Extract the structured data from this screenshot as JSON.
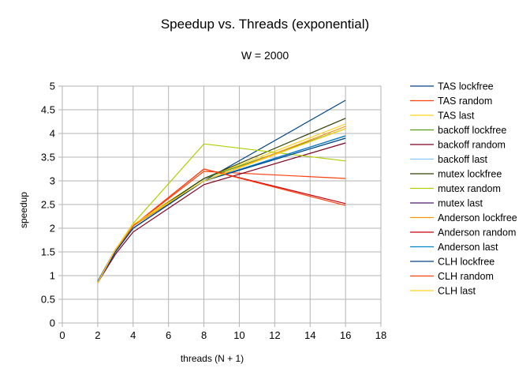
{
  "chart_data": {
    "type": "line",
    "title": "Speedup vs. Threads (exponential)",
    "subtitle": "W = 2000",
    "xlabel": "threads (N + 1)",
    "ylabel": "speedup",
    "xlim": [
      0,
      18
    ],
    "ylim": [
      0,
      5
    ],
    "xticks": [
      0,
      2,
      4,
      6,
      8,
      10,
      12,
      14,
      16,
      18
    ],
    "yticks": [
      0,
      0.5,
      1,
      1.5,
      2,
      2.5,
      3,
      3.5,
      4,
      4.5,
      5
    ],
    "ytick_labels": [
      "0",
      "0.5",
      "1",
      "1.5",
      "2",
      "2.5",
      "3",
      "3.5",
      "4",
      "4.5",
      "5"
    ],
    "grid": true,
    "legend_position": "right",
    "x": [
      2,
      3,
      4,
      8,
      16
    ],
    "series": [
      {
        "name": "TAS lockfree",
        "color": "#004586",
        "values": [
          0.88,
          1.55,
          2.05,
          3.0,
          4.7
        ]
      },
      {
        "name": "TAS random",
        "color": "#ff420e",
        "values": [
          0.85,
          1.55,
          2.05,
          3.2,
          3.05
        ]
      },
      {
        "name": "TAS last",
        "color": "#ffd320",
        "values": [
          0.85,
          1.52,
          2.08,
          3.05,
          4.2
        ]
      },
      {
        "name": "backoff lockfree",
        "color": "#579d1c",
        "values": [
          0.85,
          1.5,
          2.05,
          3.05,
          4.1
        ]
      },
      {
        "name": "backoff random",
        "color": "#7e0021",
        "values": [
          0.85,
          1.45,
          1.92,
          2.92,
          3.8
        ]
      },
      {
        "name": "backoff last",
        "color": "#83caff",
        "values": [
          0.86,
          1.5,
          2.0,
          3.0,
          3.9
        ]
      },
      {
        "name": "mutex lockfree",
        "color": "#314004",
        "values": [
          0.85,
          1.52,
          2.05,
          3.05,
          4.32
        ]
      },
      {
        "name": "mutex random",
        "color": "#aecf00",
        "values": [
          0.85,
          1.55,
          2.1,
          3.78,
          3.42
        ]
      },
      {
        "name": "mutex last",
        "color": "#4b1f6f",
        "values": [
          0.85,
          1.5,
          2.0,
          3.0,
          3.95
        ]
      },
      {
        "name": "Anderson lockfree",
        "color": "#ff950e",
        "values": [
          0.85,
          1.52,
          2.05,
          3.0,
          4.15
        ]
      },
      {
        "name": "Anderson random",
        "color": "#c5000b",
        "values": [
          0.85,
          1.55,
          2.05,
          3.25,
          2.52
        ]
      },
      {
        "name": "Anderson last",
        "color": "#0084d1",
        "values": [
          0.86,
          1.5,
          2.0,
          3.0,
          3.95
        ]
      },
      {
        "name": "CLH lockfree",
        "color": "#004586",
        "values": [
          0.85,
          1.5,
          2.0,
          3.0,
          3.9
        ]
      },
      {
        "name": "CLH random",
        "color": "#ff420e",
        "values": [
          0.85,
          1.55,
          2.05,
          3.25,
          2.48
        ]
      },
      {
        "name": "CLH last",
        "color": "#ffd320",
        "values": [
          0.85,
          1.55,
          2.08,
          3.0,
          4.1
        ]
      }
    ]
  }
}
